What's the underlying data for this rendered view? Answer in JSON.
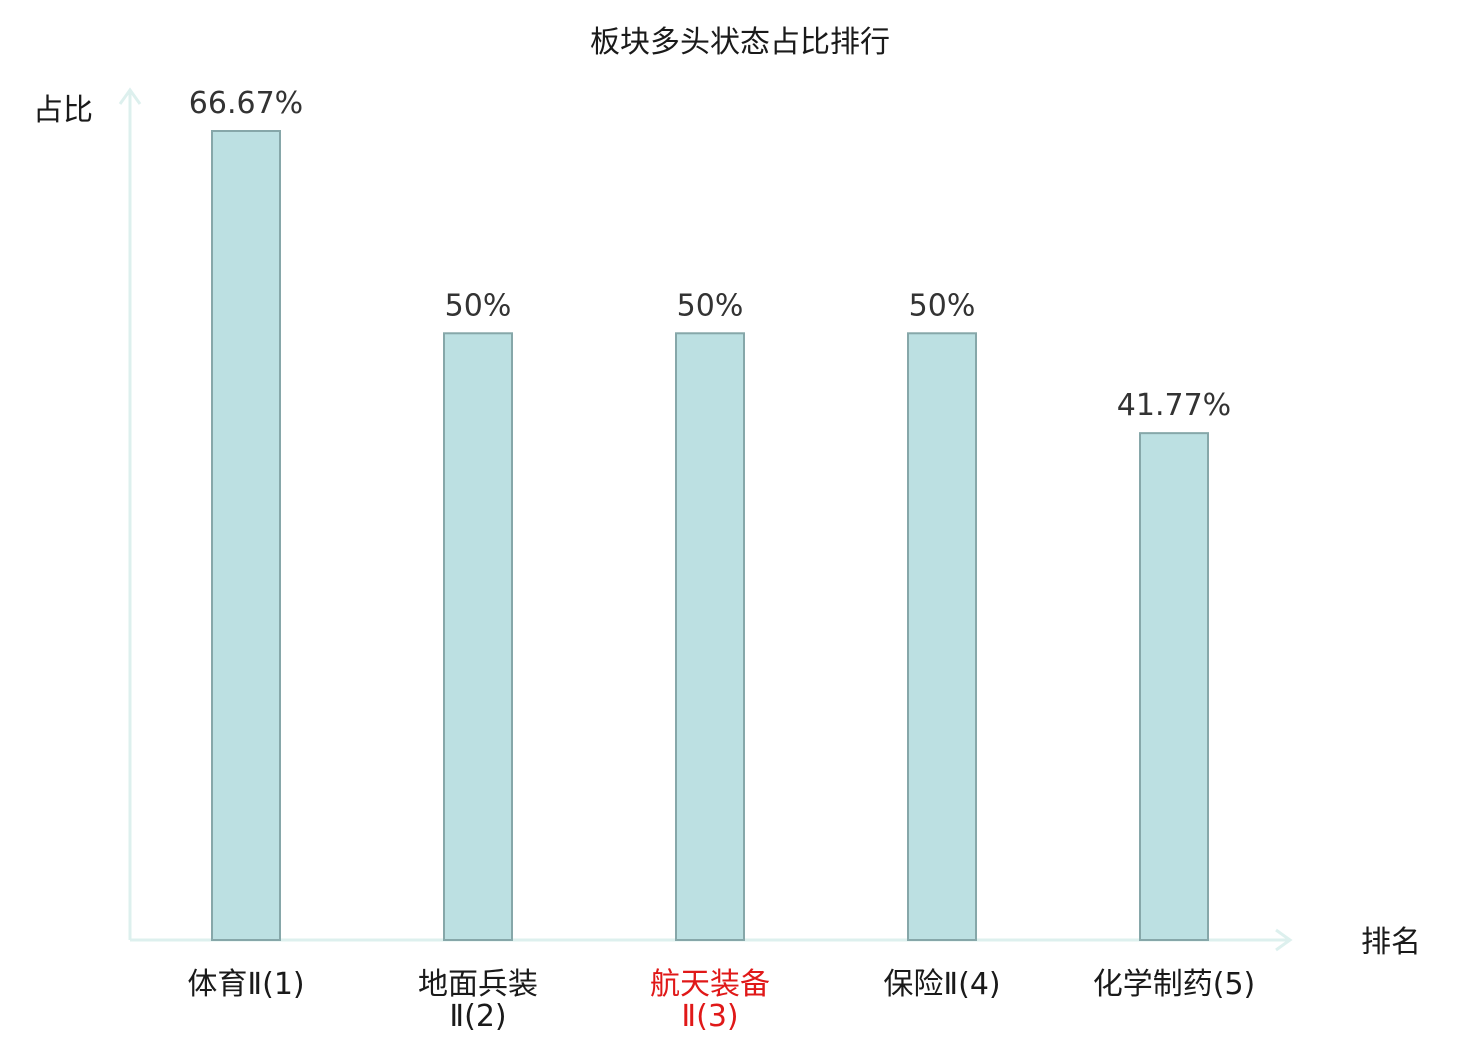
{
  "chart_data": {
    "type": "bar",
    "title": "板块多头状态占比排行",
    "ylabel": "占比",
    "xlabel": "排名",
    "categories": [
      {
        "lines": [
          "体育Ⅱ(1)"
        ],
        "highlight": false
      },
      {
        "lines": [
          "地面兵装",
          "Ⅱ(2)"
        ],
        "highlight": false
      },
      {
        "lines": [
          "航天装备",
          "Ⅱ(3)"
        ],
        "highlight": true
      },
      {
        "lines": [
          "保险Ⅱ(4)"
        ],
        "highlight": false
      },
      {
        "lines": [
          "化学制药(5)"
        ],
        "highlight": false
      }
    ],
    "values": [
      66.67,
      50,
      50,
      50,
      41.77
    ],
    "value_labels": [
      "66.67%",
      "50%",
      "50%",
      "50%",
      "41.77%"
    ],
    "unit": "%",
    "ylim": [
      0,
      66.67
    ],
    "grid": false,
    "colors": {
      "bar_fill": "#bce0e2",
      "bar_stroke": "#86a7a9",
      "axis": "#ddf0ee",
      "highlight_text": "#e01818",
      "text": "#1a1a1a"
    }
  }
}
